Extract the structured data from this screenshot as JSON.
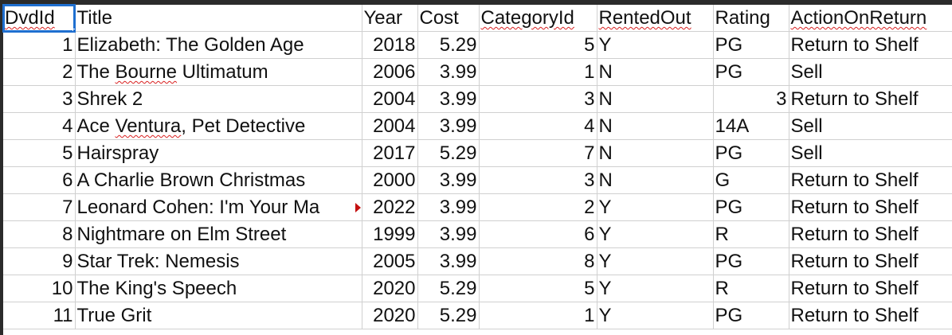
{
  "sheet": {
    "headers": [
      "DvdId",
      "Title",
      "Year",
      "Cost",
      "CategoryId",
      "RentedOut",
      "Rating",
      "ActionOnReturn"
    ],
    "rows": [
      [
        "1",
        "Elizabeth: The Golden Age",
        "2018",
        "5.29",
        "5",
        "Y",
        "PG",
        "Return to Shelf"
      ],
      [
        "2",
        "The Bourne Ultimatum",
        "2006",
        "3.99",
        "1",
        "N",
        "PG",
        "Sell"
      ],
      [
        "3",
        "Shrek 2",
        "2004",
        "3.99",
        "3",
        "N",
        "3",
        "Return to Shelf"
      ],
      [
        "4",
        "Ace Ventura, Pet Detective",
        "2004",
        "3.99",
        "4",
        "N",
        "14A",
        "Sell"
      ],
      [
        "5",
        "Hairspray",
        "2017",
        "5.29",
        "7",
        "N",
        "PG",
        "Sell"
      ],
      [
        "6",
        "A Charlie Brown Christmas",
        "2000",
        "3.99",
        "3",
        "N",
        "G",
        "Return to Shelf"
      ],
      [
        "7",
        "Leonard Cohen: I'm Your Ma",
        "2022",
        "3.99",
        "2",
        "Y",
        "PG",
        "Return to Shelf"
      ],
      [
        "8",
        "Nightmare on Elm Street",
        "1999",
        "3.99",
        "6",
        "Y",
        "R",
        "Return to Shelf"
      ],
      [
        "9",
        "Star Trek: Nemesis",
        "2005",
        "3.99",
        "8",
        "Y",
        "PG",
        "Return to Shelf"
      ],
      [
        "10",
        "The King's Speech",
        "2020",
        "5.29",
        "5",
        "Y",
        "R",
        "Return to Shelf"
      ],
      [
        "11",
        "True Grit",
        "2020",
        "5.29",
        "1",
        "Y",
        "PG",
        "Return to Shelf"
      ]
    ],
    "selected_cell": "A1",
    "colors": {
      "selection": "#1f6fd0",
      "gridline": "#d0d0d0",
      "spellcheck": "#d92020",
      "overflow_indicator": "#c41010"
    }
  }
}
